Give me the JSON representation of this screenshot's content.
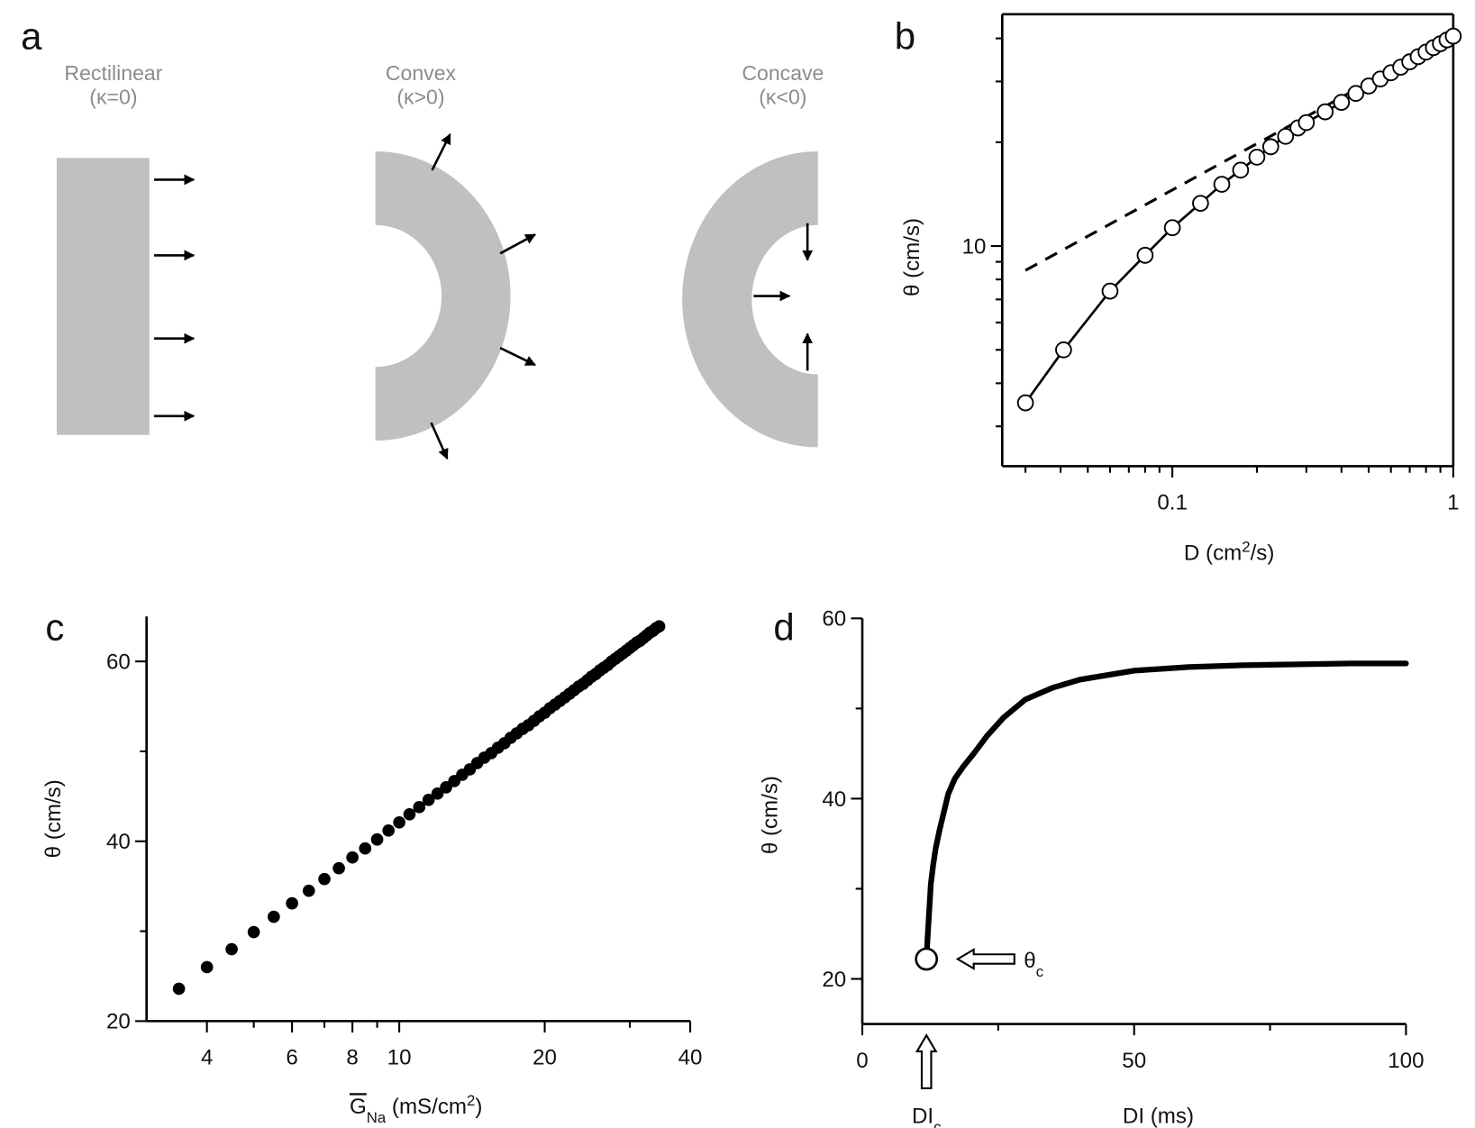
{
  "diagram": {
    "panel_label": "a",
    "shapes": [
      {
        "title": "Rectilinear",
        "kappa": "(κ=0)"
      },
      {
        "title": "Convex",
        "kappa": "(κ>0)"
      },
      {
        "title": "Concave",
        "kappa": "(κ<0)"
      }
    ]
  },
  "chart_data": [
    {
      "type": "line",
      "panel_label": "b",
      "xlabel": [
        "D (cm",
        "2",
        "/s)"
      ],
      "ylabel": "θ (cm/s)",
      "xscale": "log",
      "yscale": "log",
      "frame": true,
      "xlim": [
        0.0248,
        1
      ],
      "ylim": [
        2.3,
        47
      ],
      "xticks": [
        0.1,
        1
      ],
      "yticks": [
        10
      ],
      "series": [
        {
          "color": "#000000",
          "marker": "open-circle",
          "dash": false,
          "x": [
            0.03,
            0.041,
            0.06,
            0.08,
            0.1,
            0.126,
            0.15,
            0.175,
            0.2,
            0.224,
            0.253,
            0.28,
            0.3,
            0.35,
            0.4,
            0.45,
            0.5,
            0.55,
            0.6,
            0.65,
            0.7,
            0.75,
            0.8,
            0.85,
            0.9,
            0.95,
            1.0
          ],
          "values": [
            3.51,
            5.0,
            7.4,
            9.4,
            11.3,
            13.3,
            15.1,
            16.6,
            18.1,
            19.4,
            20.8,
            22.0,
            22.8,
            24.5,
            26.1,
            27.7,
            29.1,
            30.5,
            31.8,
            33.0,
            34.2,
            35.4,
            36.5,
            37.6,
            38.6,
            39.6,
            40.6
          ]
        },
        {
          "color": "#000000",
          "marker": "none",
          "dash": true,
          "x": [
            0.03,
            1.0
          ],
          "values": [
            8.5,
            40.6
          ]
        }
      ]
    },
    {
      "type": "scatter",
      "panel_label": "c",
      "xlabel": [
        "G",
        "Na",
        " (mS/cm",
        "2",
        ")"
      ],
      "ylabel": "θ (cm/s)",
      "xscale": "log",
      "xlim": [
        3,
        40
      ],
      "ylim": [
        20,
        65
      ],
      "xticks": [
        4,
        6,
        8,
        10,
        20,
        40
      ],
      "yticks": [
        20,
        40,
        60
      ],
      "color": "#000000",
      "x": [
        3.5,
        4,
        4.5,
        5,
        5.5,
        6,
        6.5,
        7,
        7.5,
        8,
        8.5,
        9,
        9.5,
        10,
        10.5,
        11,
        11.5,
        12,
        12.5,
        13,
        13.5,
        14,
        14.5,
        15,
        15.5,
        16,
        16.5,
        17,
        17.5,
        18,
        18.5,
        19,
        19.5,
        20,
        20.5,
        21,
        21.5,
        22,
        22.5,
        23,
        23.5,
        24,
        24.5,
        25,
        25.5,
        26,
        26.5,
        27,
        27.5,
        28,
        28.5,
        29,
        29.5,
        30,
        30.5,
        31,
        31.5,
        32,
        32.5,
        33,
        33.5,
        34,
        34.5
      ],
      "values": [
        23.6,
        26.0,
        28.0,
        29.9,
        31.6,
        33.1,
        34.5,
        35.8,
        37.0,
        38.2,
        39.2,
        40.2,
        41.2,
        42.1,
        43.0,
        43.8,
        44.6,
        45.3,
        46.0,
        46.7,
        47.4,
        48.0,
        48.7,
        49.3,
        49.8,
        50.4,
        50.9,
        51.5,
        52.0,
        52.5,
        52.9,
        53.4,
        53.9,
        54.3,
        54.8,
        55.2,
        55.6,
        56.0,
        56.4,
        56.8,
        57.2,
        57.5,
        57.9,
        58.3,
        58.6,
        59.0,
        59.3,
        59.6,
        60.0,
        60.3,
        60.6,
        60.9,
        61.2,
        61.5,
        61.8,
        62.1,
        62.3,
        62.6,
        62.9,
        63.2,
        63.4,
        63.7,
        63.9
      ]
    },
    {
      "type": "line",
      "panel_label": "d",
      "xlabel": "DI (ms)",
      "ylabel": "θ (cm/s)",
      "xlim": [
        0,
        100
      ],
      "ylim": [
        15,
        60
      ],
      "xticks": [
        0,
        50,
        100
      ],
      "yticks": [
        20,
        40,
        60
      ],
      "color": "#000000",
      "x": [
        11.8,
        12.0,
        12.3,
        12.6,
        13.0,
        13.5,
        14.2,
        15.0,
        15.8,
        17.0,
        18.5,
        20.5,
        23,
        26,
        30,
        35,
        40,
        50,
        60,
        70,
        80,
        90,
        100
      ],
      "values": [
        22.2,
        24.5,
        27.5,
        30.5,
        32.5,
        34.5,
        36.5,
        38.5,
        40.5,
        42.2,
        43.5,
        45,
        47,
        49,
        51,
        52.3,
        53.2,
        54.2,
        54.6,
        54.8,
        54.9,
        55,
        55
      ],
      "critical_point": {
        "x": 11.8,
        "value": 22.2
      },
      "annotations": {
        "theta_c": [
          "θ",
          "c"
        ],
        "di_c": [
          "DI",
          "c"
        ]
      }
    }
  ]
}
